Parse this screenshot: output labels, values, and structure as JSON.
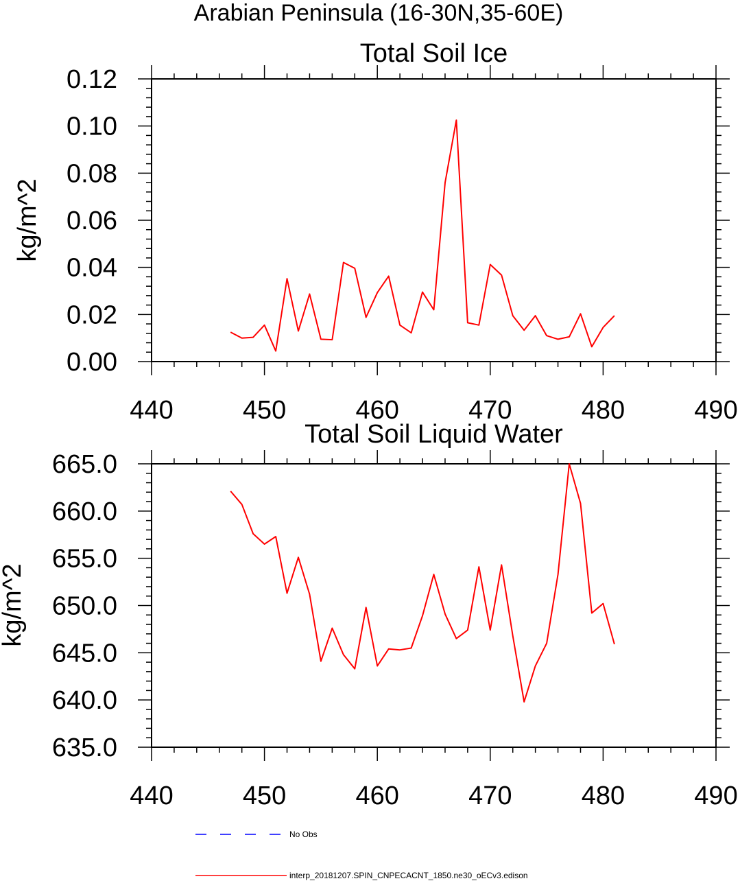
{
  "figure_title": "Arabian Peninsula (16-30N,35-60E)",
  "legend": {
    "items": [
      {
        "label": "No Obs",
        "color": "#0000ff",
        "style": "dashed"
      },
      {
        "label": "interp_20181207.SPIN_CNPECACNT_1850.ne30_oECv3.edison",
        "color": "#ff0000",
        "style": "solid"
      }
    ]
  },
  "chart_data": [
    {
      "type": "line",
      "title": "Total Soil Ice",
      "xlabel": "",
      "ylabel": "kg/m^2",
      "xlim": [
        440,
        490
      ],
      "ylim": [
        0,
        0.12
      ],
      "xticks": [
        440,
        450,
        460,
        470,
        480,
        490
      ],
      "xtick_labels": [
        "440",
        "450",
        "460",
        "470",
        "480",
        "490"
      ],
      "yticks": [
        0,
        0.02,
        0.04,
        0.06,
        0.08,
        0.1,
        0.12
      ],
      "ytick_labels": [
        "0.00",
        "0.02",
        "0.04",
        "0.06",
        "0.08",
        "0.10",
        "0.12"
      ],
      "grid": false,
      "series": [
        {
          "color": "#ff0000",
          "x": [
            447,
            448,
            449,
            450,
            451,
            452,
            453,
            454,
            455,
            456,
            457,
            458,
            459,
            460,
            461,
            462,
            463,
            464,
            465,
            466,
            467,
            468,
            469,
            470,
            471,
            472,
            473,
            474,
            475,
            476,
            477,
            478,
            479,
            480,
            481
          ],
          "y": [
            0.0125,
            0.01,
            0.0103,
            0.0155,
            0.0045,
            0.0352,
            0.013,
            0.0287,
            0.0095,
            0.0093,
            0.0421,
            0.0396,
            0.0188,
            0.0293,
            0.0363,
            0.0155,
            0.0122,
            0.0295,
            0.022,
            0.076,
            0.1025,
            0.0165,
            0.0155,
            0.0412,
            0.0367,
            0.0195,
            0.0133,
            0.0195,
            0.011,
            0.0095,
            0.0105,
            0.0203,
            0.0063,
            0.0145,
            0.0195
          ]
        }
      ]
    },
    {
      "type": "line",
      "title": "Total Soil Liquid Water",
      "xlabel": "",
      "ylabel": "kg/m^2",
      "xlim": [
        440,
        490
      ],
      "ylim": [
        635,
        665
      ],
      "xticks": [
        440,
        450,
        460,
        470,
        480,
        490
      ],
      "xtick_labels": [
        "440",
        "450",
        "460",
        "470",
        "480",
        "490"
      ],
      "yticks": [
        635,
        640,
        645,
        650,
        655,
        660,
        665
      ],
      "ytick_labels": [
        "635.0",
        "640.0",
        "645.0",
        "650.0",
        "655.0",
        "660.0",
        "665.0"
      ],
      "grid": false,
      "series": [
        {
          "color": "#ff0000",
          "x": [
            447,
            448,
            449,
            450,
            451,
            452,
            453,
            454,
            455,
            456,
            457,
            458,
            459,
            460,
            461,
            462,
            463,
            464,
            465,
            466,
            467,
            468,
            469,
            470,
            471,
            472,
            473,
            474,
            475,
            476,
            477,
            478,
            479,
            480,
            481
          ],
          "y": [
            662.1,
            660.7,
            657.6,
            656.5,
            657.3,
            651.3,
            655.1,
            651.2,
            644.1,
            647.6,
            644.8,
            643.3,
            649.8,
            643.6,
            645.4,
            645.3,
            645.5,
            648.9,
            653.3,
            649.1,
            646.5,
            647.4,
            654.1,
            647.4,
            654.3,
            646.8,
            639.8,
            643.6,
            646.0,
            653.3,
            665.0,
            660.8,
            649.2,
            650.2,
            645.9
          ]
        }
      ]
    }
  ]
}
